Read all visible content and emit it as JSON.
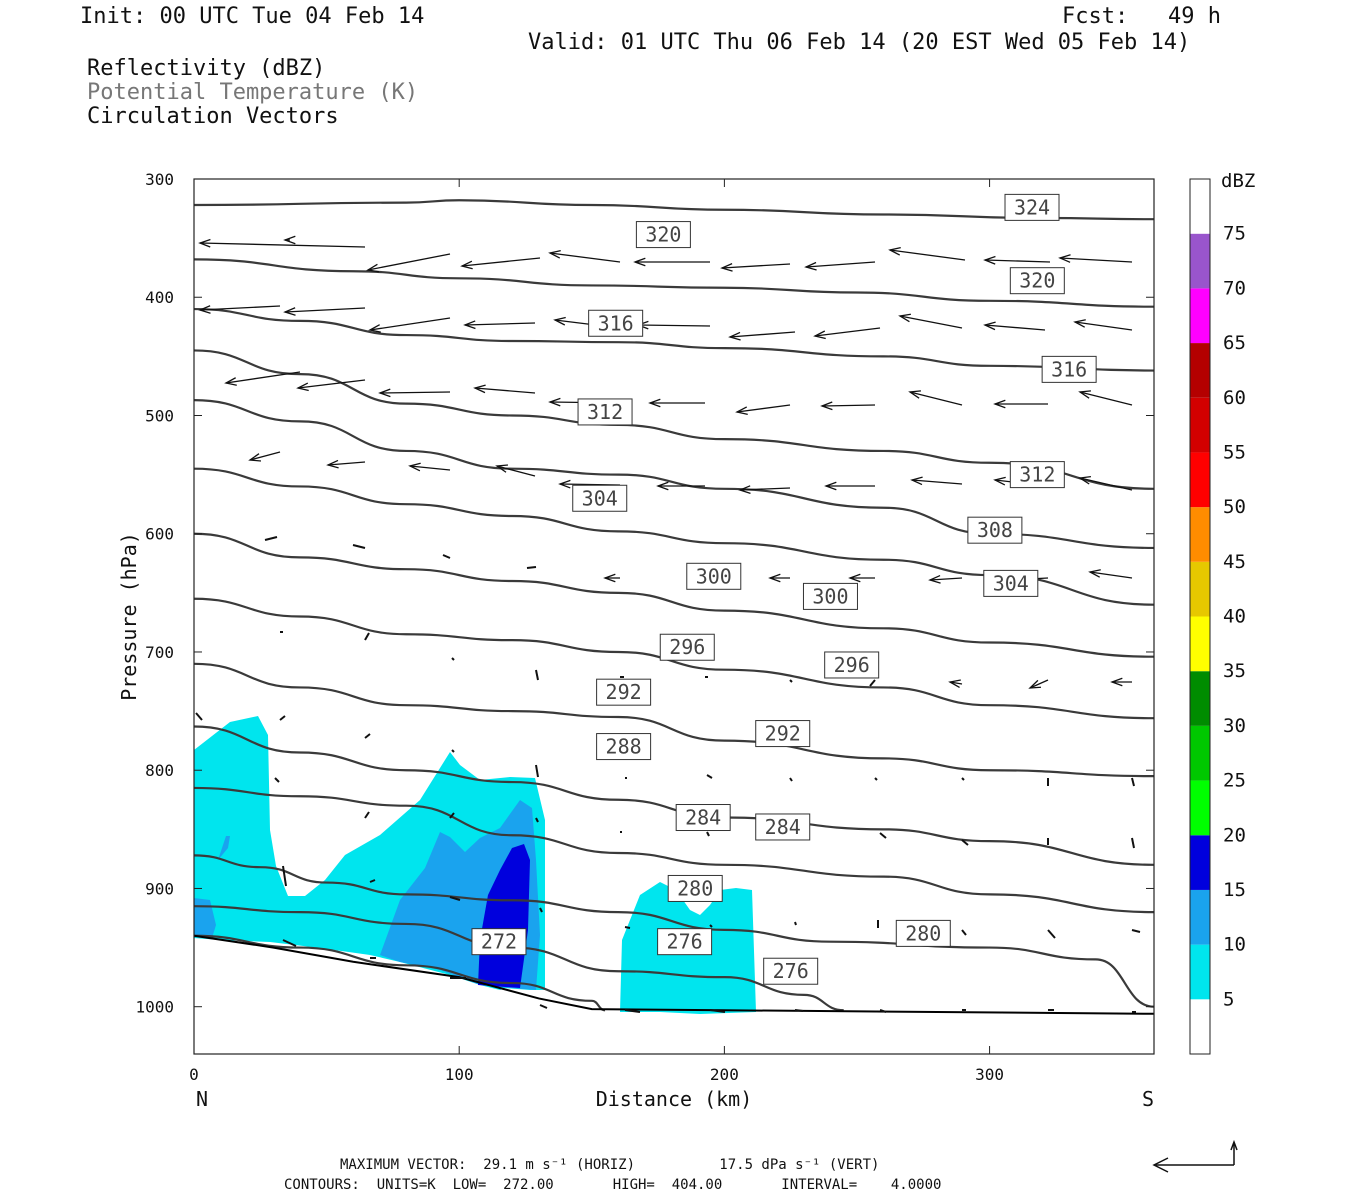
{
  "header": {
    "init": "Init: 00 UTC Tue 04 Feb 14",
    "fcst": "Fcst:   49 h",
    "valid": "Valid: 01 UTC Thu 06 Feb 14 (20 EST Wed 05 Feb 14)"
  },
  "legend_titles": {
    "reflectivity": "Reflectivity (dBZ)",
    "theta": "Potential Temperature (K)",
    "vectors": "Circulation Vectors"
  },
  "footer": {
    "max_vector": "MAXIMUM VECTOR:  29.1 m s⁻¹ (HORIZ)          17.5 dPa s⁻¹ (VERT)",
    "contours": "CONTOURS:  UNITS=K  LOW=  272.00       HIGH=  404.00       INTERVAL=    4.0000"
  },
  "colors": {
    "dbz_5": "#00e5ee",
    "dbz_10": "#1aa3ee",
    "dbz_15": "#0000dd",
    "contour": "#3a3a3a"
  },
  "chart_data": {
    "type": "cross-section",
    "xlabel": "Distance (km)",
    "ylabel": "Pressure (hPa)",
    "x_left_label": "N",
    "x_right_label": "S",
    "xlim": [
      0,
      362
    ],
    "ylim": [
      1040,
      300
    ],
    "x_ticks": [
      0,
      100,
      200,
      300
    ],
    "y_ticks": [
      300,
      400,
      500,
      600,
      700,
      800,
      900,
      1000
    ],
    "colorbar": {
      "title": "dBZ",
      "levels": [
        5,
        10,
        15,
        20,
        25,
        30,
        35,
        40,
        45,
        50,
        55,
        60,
        65,
        70,
        75
      ],
      "colors": [
        "#ffffff",
        "#00e5ee",
        "#1aa3ee",
        "#0000dd",
        "#00ff00",
        "#00c800",
        "#008c00",
        "#ffff00",
        "#e6c800",
        "#ff8c00",
        "#ff0000",
        "#d20000",
        "#b40000",
        "#ff00ff",
        "#9955cc",
        "#ffffff"
      ]
    },
    "theta_contours": [
      {
        "theta": 324,
        "points": [
          [
            0,
            322
          ],
          [
            80,
            320
          ],
          [
            100,
            318
          ],
          [
            150,
            322
          ],
          [
            200,
            326
          ],
          [
            260,
            330
          ],
          [
            320,
            333
          ],
          [
            362,
            334
          ]
        ]
      },
      {
        "theta": 320,
        "points": [
          [
            0,
            368
          ],
          [
            60,
            378
          ],
          [
            100,
            384
          ],
          [
            150,
            390
          ],
          [
            200,
            392
          ],
          [
            250,
            396
          ],
          [
            300,
            403
          ],
          [
            362,
            408
          ]
        ]
      },
      {
        "theta": 316,
        "points": [
          [
            0,
            410
          ],
          [
            40,
            420
          ],
          [
            80,
            432
          ],
          [
            120,
            437
          ],
          [
            160,
            438
          ],
          [
            200,
            443
          ],
          [
            260,
            450
          ],
          [
            300,
            458
          ],
          [
            362,
            462
          ]
        ]
      },
      {
        "theta": 312,
        "points": [
          [
            0,
            445
          ],
          [
            40,
            465
          ],
          [
            80,
            490
          ],
          [
            120,
            500
          ],
          [
            160,
            508
          ],
          [
            200,
            520
          ],
          [
            260,
            530
          ],
          [
            300,
            540
          ],
          [
            362,
            562
          ]
        ]
      },
      {
        "theta": 308,
        "points": [
          [
            0,
            487
          ],
          [
            40,
            505
          ],
          [
            80,
            530
          ],
          [
            120,
            545
          ],
          [
            160,
            550
          ],
          [
            200,
            562
          ],
          [
            260,
            578
          ],
          [
            300,
            600
          ],
          [
            362,
            612
          ]
        ]
      },
      {
        "theta": 304,
        "points": [
          [
            0,
            545
          ],
          [
            40,
            560
          ],
          [
            80,
            575
          ],
          [
            120,
            585
          ],
          [
            160,
            598
          ],
          [
            200,
            608
          ],
          [
            260,
            622
          ],
          [
            300,
            635
          ],
          [
            362,
            660
          ]
        ]
      },
      {
        "theta": 300,
        "points": [
          [
            0,
            600
          ],
          [
            40,
            620
          ],
          [
            80,
            630
          ],
          [
            120,
            640
          ],
          [
            160,
            650
          ],
          [
            200,
            665
          ],
          [
            260,
            680
          ],
          [
            300,
            692
          ],
          [
            362,
            704
          ]
        ]
      },
      {
        "theta": 296,
        "points": [
          [
            0,
            655
          ],
          [
            40,
            670
          ],
          [
            80,
            685
          ],
          [
            120,
            690
          ],
          [
            160,
            700
          ],
          [
            200,
            715
          ],
          [
            260,
            730
          ],
          [
            300,
            745
          ],
          [
            362,
            756
          ]
        ]
      },
      {
        "theta": 292,
        "points": [
          [
            0,
            710
          ],
          [
            40,
            730
          ],
          [
            80,
            745
          ],
          [
            120,
            750
          ],
          [
            160,
            755
          ],
          [
            200,
            775
          ],
          [
            260,
            790
          ],
          [
            300,
            800
          ],
          [
            362,
            805
          ]
        ]
      },
      {
        "theta": 288,
        "points": [
          [
            0,
            763
          ],
          [
            40,
            785
          ],
          [
            80,
            800
          ],
          [
            120,
            810
          ],
          [
            160,
            825
          ],
          [
            200,
            840
          ],
          [
            260,
            850
          ],
          [
            300,
            860
          ],
          [
            362,
            880
          ]
        ]
      },
      {
        "theta": 284,
        "points": [
          [
            0,
            815
          ],
          [
            40,
            822
          ],
          [
            80,
            830
          ],
          [
            120,
            855
          ],
          [
            160,
            870
          ],
          [
            200,
            880
          ],
          [
            260,
            890
          ],
          [
            300,
            905
          ],
          [
            362,
            920
          ]
        ]
      },
      {
        "theta": 280,
        "points": [
          [
            0,
            872
          ],
          [
            25,
            882
          ],
          [
            50,
            895
          ],
          [
            80,
            905
          ],
          [
            120,
            910
          ],
          [
            160,
            920
          ],
          [
            200,
            935
          ],
          [
            240,
            945
          ],
          [
            300,
            950
          ],
          [
            340,
            960
          ],
          [
            362,
            1000
          ]
        ]
      },
      {
        "theta": 276,
        "points": [
          [
            0,
            915
          ],
          [
            40,
            920
          ],
          [
            80,
            930
          ],
          [
            120,
            950
          ],
          [
            160,
            970
          ],
          [
            200,
            975
          ],
          [
            230,
            990
          ],
          [
            245,
            1003
          ]
        ]
      },
      {
        "theta": 272,
        "points": [
          [
            0,
            940
          ],
          [
            40,
            950
          ],
          [
            80,
            965
          ],
          [
            120,
            980
          ],
          [
            150,
            995
          ],
          [
            155,
            1003
          ]
        ]
      }
    ],
    "contour_labels": [
      {
        "text": "324",
        "x": 316,
        "p": 324
      },
      {
        "text": "320",
        "x": 177,
        "p": 347
      },
      {
        "text": "320",
        "x": 318,
        "p": 386
      },
      {
        "text": "316",
        "x": 159,
        "p": 422
      },
      {
        "text": "316",
        "x": 330,
        "p": 461
      },
      {
        "text": "312",
        "x": 155,
        "p": 497
      },
      {
        "text": "312",
        "x": 318,
        "p": 550
      },
      {
        "text": "304",
        "x": 153,
        "p": 570
      },
      {
        "text": "308",
        "x": 302,
        "p": 597
      },
      {
        "text": "300",
        "x": 196,
        "p": 636
      },
      {
        "text": "300",
        "x": 240,
        "p": 653
      },
      {
        "text": "304",
        "x": 308,
        "p": 642
      },
      {
        "text": "296",
        "x": 186,
        "p": 696
      },
      {
        "text": "296",
        "x": 248,
        "p": 711
      },
      {
        "text": "292",
        "x": 162,
        "p": 734
      },
      {
        "text": "292",
        "x": 222,
        "p": 769
      },
      {
        "text": "288",
        "x": 162,
        "p": 780
      },
      {
        "text": "284",
        "x": 192,
        "p": 840
      },
      {
        "text": "284",
        "x": 222,
        "p": 848
      },
      {
        "text": "280",
        "x": 189,
        "p": 900
      },
      {
        "text": "280",
        "x": 275,
        "p": 938
      },
      {
        "text": "276",
        "x": 185,
        "p": 945
      },
      {
        "text": "276",
        "x": 225,
        "p": 970
      },
      {
        "text": "272",
        "x": 115,
        "p": 945
      }
    ],
    "surface": [
      [
        0,
        940
      ],
      [
        30,
        950
      ],
      [
        60,
        962
      ],
      [
        100,
        975
      ],
      [
        130,
        993
      ],
      [
        150,
        1002
      ],
      [
        200,
        1003
      ],
      [
        362,
        1006
      ]
    ]
  }
}
